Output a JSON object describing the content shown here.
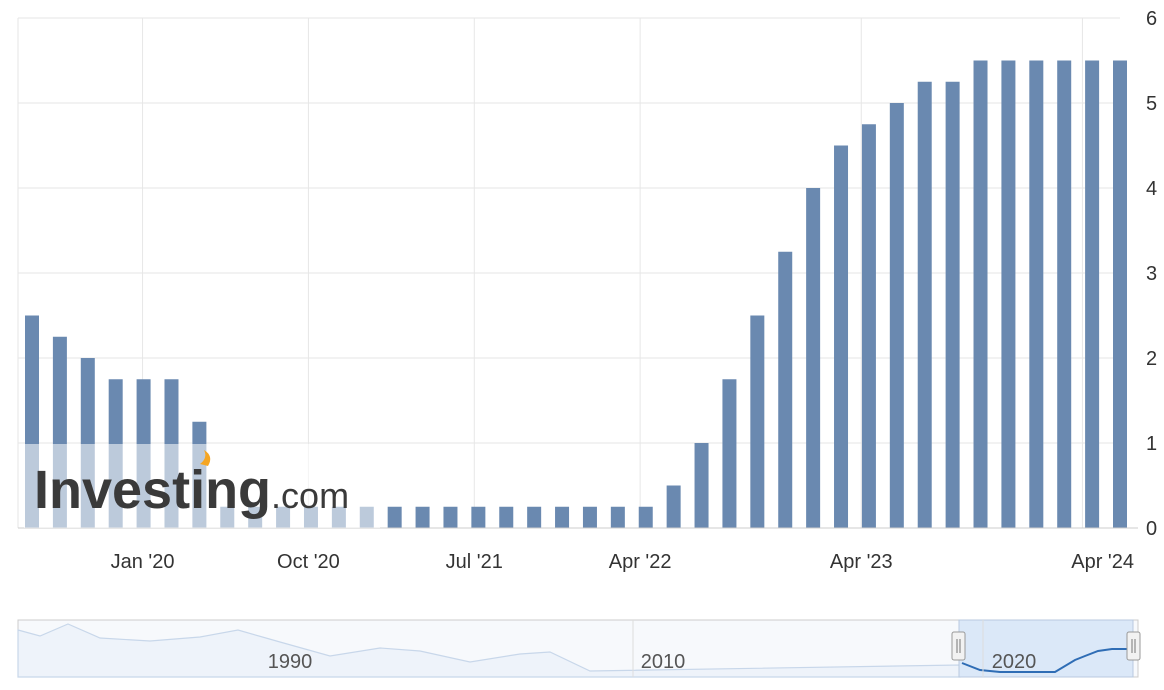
{
  "watermark": {
    "brand": "Investing",
    "suffix": ".com"
  },
  "colors": {
    "bar": "#6a89b0",
    "grid": "#e6e6e6",
    "axis": "#cccccc",
    "navigator_line": "#2f6db5",
    "navigator_fill": "#dbe8f8"
  },
  "chart_data": {
    "type": "bar",
    "x": [
      "2019-07",
      "2019-09",
      "2019-10",
      "2019-12",
      "2020-01",
      "2020-03",
      "2020-03",
      "2020-04",
      "2020-06",
      "2020-07",
      "2020-09",
      "2020-11",
      "2020-12",
      "2021-01",
      "2021-03",
      "2021-04",
      "2021-06",
      "2021-07",
      "2021-09",
      "2021-11",
      "2021-12",
      "2022-01",
      "2022-03",
      "2022-05",
      "2022-06",
      "2022-07",
      "2022-09",
      "2022-11",
      "2022-12",
      "2023-02",
      "2023-03",
      "2023-05",
      "2023-06",
      "2023-07",
      "2023-09",
      "2023-11",
      "2023-12",
      "2024-01",
      "2024-03",
      "2024-05"
    ],
    "values": [
      2.5,
      2.25,
      2.0,
      1.75,
      1.75,
      1.75,
      1.25,
      0.25,
      0.25,
      0.25,
      0.25,
      0.25,
      0.25,
      0.25,
      0.25,
      0.25,
      0.25,
      0.25,
      0.25,
      0.25,
      0.25,
      0.25,
      0.25,
      0.5,
      1.0,
      1.75,
      2.5,
      3.25,
      4.0,
      4.5,
      4.75,
      5.0,
      5.25,
      5.25,
      5.5,
      5.5,
      5.5,
      5.5,
      5.5,
      5.5
    ],
    "x_tick_labels": [
      "Jan '20",
      "Oct '20",
      "Jul '21",
      "Apr '22",
      "Apr '23",
      "Apr '24"
    ],
    "y_ticks": [
      0,
      1,
      2,
      3,
      4,
      5,
      6
    ],
    "ylim": [
      0,
      6
    ],
    "grid": true,
    "navigator": {
      "labels": [
        "1990",
        "2010",
        "2020"
      ]
    }
  }
}
